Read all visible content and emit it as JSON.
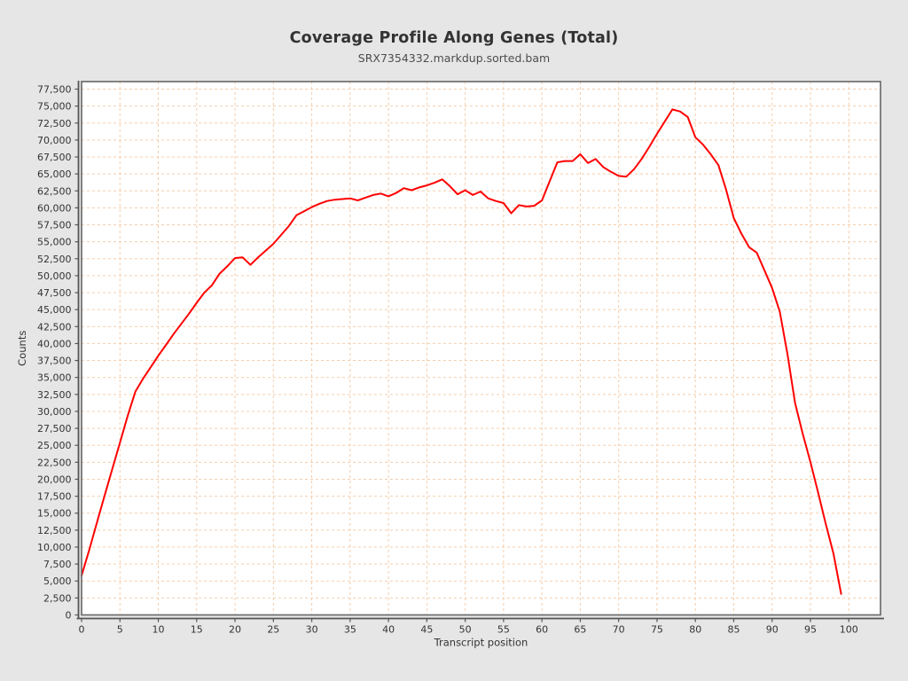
{
  "title": "Coverage Profile Along Genes (Total)",
  "subtitle": "SRX7354332.markdup.sorted.bam",
  "colors": {
    "background": "#e6e6e6",
    "plot_background": "#ffffff",
    "plot_border": "#666666",
    "axis": "#545454",
    "grid": "#f5cdab",
    "series": "#ff0000",
    "text": "#333333",
    "title_text": "#333333",
    "subtitle_text": "#4d4d4d"
  },
  "chart_data": {
    "type": "line",
    "title": "Coverage Profile Along Genes (Total)",
    "subtitle": "SRX7354332.markdup.sorted.bam",
    "xlabel": "Transcript position",
    "ylabel": "Counts",
    "legend": "none",
    "grid": "dashed",
    "xlim": [
      0,
      104.13
    ],
    "ylim": [
      0,
      78610
    ],
    "x_tick_values": [
      0,
      5,
      10,
      15,
      20,
      25,
      30,
      35,
      40,
      45,
      50,
      55,
      60,
      65,
      70,
      75,
      80,
      85,
      90,
      95,
      100
    ],
    "x_tick_labels": [
      "0",
      "5",
      "10",
      "15",
      "20",
      "25",
      "30",
      "35",
      "40",
      "45",
      "50",
      "55",
      "60",
      "65",
      "70",
      "75",
      "80",
      "85",
      "90",
      "95",
      "100"
    ],
    "y_tick_values": [
      0,
      2500,
      5000,
      7500,
      10000,
      12500,
      15000,
      17500,
      20000,
      22500,
      25000,
      27500,
      30000,
      32500,
      35000,
      37500,
      40000,
      42500,
      45000,
      47500,
      50000,
      52500,
      55000,
      57500,
      60000,
      62500,
      65000,
      67500,
      70000,
      72500,
      75000,
      77500
    ],
    "y_tick_labels": [
      "0",
      "2,500",
      "5,000",
      "7,500",
      "10,000",
      "12,500",
      "15,000",
      "17,500",
      "20,000",
      "22,500",
      "25,000",
      "27,500",
      "30,000",
      "32,500",
      "35,000",
      "37,500",
      "40,000",
      "42,500",
      "45,000",
      "47,500",
      "50,000",
      "52,500",
      "55,000",
      "57,500",
      "60,000",
      "62,500",
      "65,000",
      "67,500",
      "70,000",
      "72,500",
      "75,000",
      "77,500"
    ],
    "series": [
      {
        "name": "SRX7354332.markdup.sorted.bam",
        "color": "#ff0000",
        "x": [
          0,
          1,
          2,
          3,
          4,
          5,
          6,
          7,
          8,
          9,
          10,
          11,
          12,
          13,
          14,
          15,
          16,
          17,
          18,
          19,
          20,
          21,
          22,
          23,
          24,
          25,
          26,
          27,
          28,
          29,
          30,
          31,
          32,
          33,
          34,
          35,
          36,
          37,
          38,
          39,
          40,
          41,
          42,
          43,
          44,
          45,
          46,
          47,
          48,
          49,
          50,
          51,
          52,
          53,
          54,
          55,
          56,
          57,
          58,
          59,
          60,
          61,
          62,
          63,
          64,
          65,
          66,
          67,
          68,
          69,
          70,
          71,
          72,
          73,
          74,
          75,
          76,
          77,
          78,
          79,
          80,
          81,
          82,
          83,
          84,
          85,
          86,
          87,
          88,
          89,
          90,
          91,
          92,
          93,
          94,
          95,
          96,
          97,
          98,
          99
        ],
        "values": [
          5800,
          9600,
          13600,
          17600,
          21500,
          25400,
          29300,
          32900,
          34800,
          36500,
          38200,
          39800,
          41400,
          42900,
          44400,
          46000,
          47500,
          48600,
          50300,
          51400,
          52600,
          52700,
          51600,
          52700,
          53700,
          54700,
          56000,
          57300,
          58900,
          59500,
          60100,
          60600,
          61000,
          61200,
          61300,
          61400,
          61100,
          61500,
          61900,
          62100,
          61700,
          62200,
          62900,
          62600,
          63000,
          63300,
          63700,
          64200,
          63200,
          62000,
          62600,
          61900,
          62400,
          61400,
          61000,
          60700,
          59200,
          60400,
          60200,
          60300,
          61100,
          63900,
          66700,
          66900,
          66900,
          67900,
          66600,
          67200,
          66000,
          65300,
          64700,
          64600,
          65700,
          67200,
          69000,
          70900,
          72700,
          74500,
          74200,
          73400,
          70400,
          69300,
          67900,
          66300,
          62700,
          58500,
          56200,
          54200,
          53400,
          50800,
          48200,
          44700,
          38500,
          31200,
          26700,
          22500,
          18000,
          13400,
          9000,
          3100
        ]
      }
    ]
  }
}
